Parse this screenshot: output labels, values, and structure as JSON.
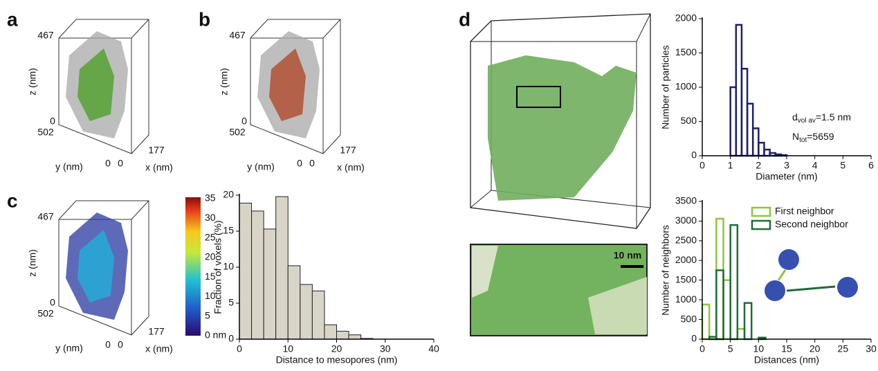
{
  "panels": [
    {
      "letter": "a",
      "z_max": "467",
      "z_label": "z (nm)",
      "z_zero": "0",
      "y_max": "502",
      "y_label": "y (nm)",
      "y_zero": "0",
      "x_zero": "0",
      "x_max": "177",
      "x_label": "x (nm)"
    },
    {
      "letter": "b",
      "z_max": "467",
      "z_label": "z (nm)",
      "z_zero": "0",
      "y_max": "502",
      "y_label": "y (nm)",
      "y_zero": "0",
      "x_zero": "0",
      "x_max": "177",
      "x_label": "x (nm)"
    },
    {
      "letter": "c",
      "z_max": "467",
      "z_label": "z (nm)",
      "z_zero": "0",
      "y_max": "502",
      "y_label": "y (nm)",
      "y_zero": "0",
      "x_zero": "0",
      "x_max": "177",
      "x_label": "x (nm)"
    }
  ],
  "colorbar": {
    "labels": [
      "35",
      "30",
      "25",
      "20",
      "15",
      "10",
      "5",
      "0 nm"
    ]
  },
  "panel_d": {
    "letter": "d",
    "scale_bar": "10 nm"
  },
  "chart_data": [
    {
      "type": "histogram",
      "x_label": "Distance to mesopores (nm)",
      "y_label": "Fraction of voxels (%)",
      "bins": [
        0,
        2.5,
        5,
        7.5,
        10,
        12.5,
        15,
        17.5,
        20,
        22.5,
        25,
        27.5
      ],
      "values": [
        18.9,
        17.8,
        15.3,
        19.8,
        10.2,
        7.6,
        6.7,
        2.0,
        1.1,
        0.6,
        0.1
      ],
      "color": "#d9d4c8",
      "xlim": [
        0,
        40
      ],
      "xticks": [
        0,
        10,
        20,
        30,
        40
      ],
      "ylim": [
        0,
        20
      ],
      "yticks": [
        0,
        5,
        10,
        15,
        20
      ]
    },
    {
      "type": "histogram",
      "x_label": "Diameter (nm)",
      "y_label": "Number of particles",
      "bins": [
        1.0,
        1.2,
        1.4,
        1.6,
        1.8,
        2.0,
        2.2,
        2.4,
        2.6,
        2.8,
        3.0
      ],
      "values": [
        1000,
        1910,
        1270,
        760,
        400,
        190,
        90,
        40,
        20,
        10
      ],
      "color": "#1f1f6b",
      "annotations": [
        [
          "d",
          "vol av",
          "=1.5 nm"
        ],
        [
          "N",
          "tot",
          "=5659"
        ]
      ],
      "xlim": [
        0,
        6
      ],
      "xticks": [
        0,
        1,
        2,
        3,
        4,
        5,
        6
      ],
      "ylim": [
        0,
        2000
      ],
      "yticks": [
        0,
        500,
        1000,
        1500,
        2000
      ]
    },
    {
      "type": "histogram",
      "x_label": "Distances (nm)",
      "y_label": "Number of neighbors",
      "bins": [
        0,
        1.25,
        2.5,
        3.75,
        5,
        6.25,
        7.5,
        8.75,
        10,
        11.25
      ],
      "series": [
        {
          "name": "First neighbor",
          "color": "#8cc63f",
          "values": [
            880,
            0,
            3060,
            1500,
            0,
            260,
            0,
            0,
            0
          ]
        },
        {
          "name": "Second neighbor",
          "color": "#1e6b3a",
          "values": [
            0,
            60,
            1750,
            0,
            2900,
            0,
            920,
            0,
            40
          ]
        }
      ],
      "xlim": [
        0,
        30
      ],
      "xticks": [
        0,
        5,
        10,
        15,
        20,
        25,
        30
      ],
      "ylim": [
        0,
        3500
      ],
      "yticks": [
        0,
        500,
        1000,
        1500,
        2000,
        2500,
        3000,
        3500
      ]
    }
  ]
}
